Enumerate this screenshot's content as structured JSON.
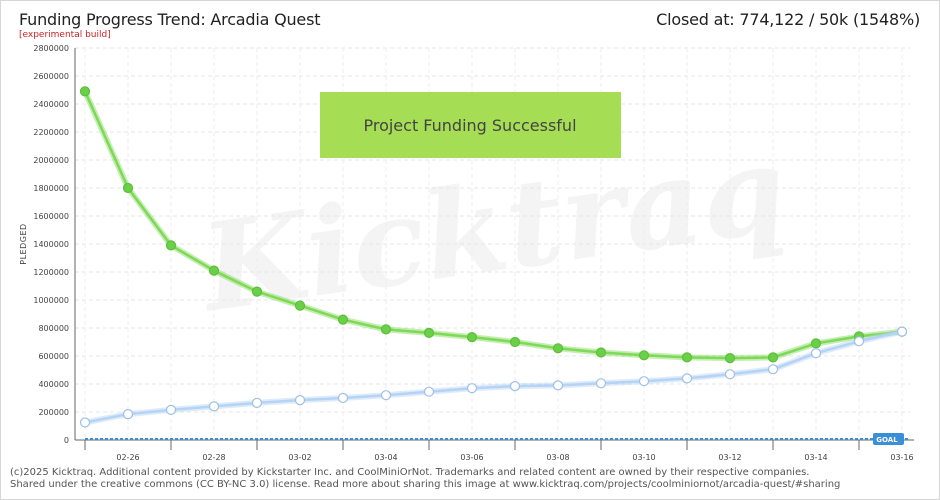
{
  "header": {
    "title": "Funding Progress Trend: Arcadia Quest",
    "subtitle": "[experimental build]",
    "closed_at": "Closed at:  774,122 /  50k (1548%)"
  },
  "banner": {
    "text": "Project Funding Successful",
    "color": "#a5dd55"
  },
  "watermark": "Kicktraq",
  "footer": {
    "line1": "(c)2025 Kicktraq. Additional content provided by Kickstarter Inc. and CoolMiniOrNot. Trademarks and related content are owned by their respective companies.",
    "line2": "Shared under the creative commons (CC BY-NC 3.0) license. Read more about sharing this image at www.kicktraq.com/projects/coolminiornot/arcadia-quest/#sharing"
  },
  "chart_data": {
    "type": "line",
    "ylabel": "PLEDGED",
    "ylim": [
      0,
      2800000
    ],
    "yticks": [
      0,
      200000,
      400000,
      600000,
      800000,
      1000000,
      1200000,
      1400000,
      1600000,
      1800000,
      2000000,
      2200000,
      2400000,
      2600000,
      2800000
    ],
    "x_ticks": [
      "02-26",
      "02-28",
      "03-02",
      "03-04",
      "03-06",
      "03-08",
      "03-10",
      "03-12",
      "03-14",
      "03-16"
    ],
    "goal": {
      "label": "GOAL",
      "value": 50000,
      "color": "#3a8fd8"
    },
    "series": [
      {
        "role": "projected",
        "color": "#7ed957",
        "values": [
          2490000,
          1800000,
          1390000,
          1210000,
          1060000,
          960000,
          860000,
          790000,
          765000,
          735000,
          700000,
          655000,
          625000,
          605000,
          590000,
          585000,
          590000,
          690000,
          740000,
          774122
        ]
      },
      {
        "role": "pledged",
        "color": "#b5d3f5",
        "values": [
          125000,
          185000,
          215000,
          240000,
          265000,
          285000,
          300000,
          320000,
          345000,
          370000,
          385000,
          390000,
          405000,
          420000,
          440000,
          470000,
          505000,
          620000,
          705000,
          774122
        ]
      }
    ]
  }
}
